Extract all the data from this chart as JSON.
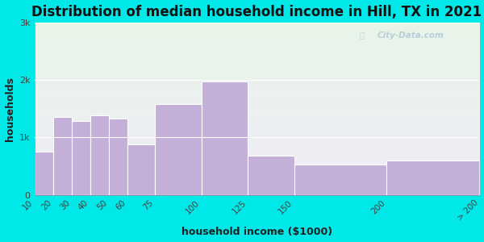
{
  "title": "Distribution of median household income in Hill, TX in 2021",
  "xlabel": "household income ($1000)",
  "ylabel": "households",
  "bin_edges": [
    10,
    20,
    30,
    40,
    50,
    60,
    75,
    100,
    125,
    150,
    200,
    250
  ],
  "values": [
    750,
    1350,
    1280,
    1380,
    1330,
    880,
    1580,
    1970,
    680,
    530,
    600
  ],
  "xtick_positions": [
    10,
    20,
    30,
    40,
    50,
    60,
    75,
    100,
    125,
    150,
    200,
    250
  ],
  "xtick_labels": [
    "10",
    "20",
    "30",
    "40",
    "50",
    "60",
    "75",
    "100",
    "125",
    "150",
    "200",
    "> 200"
  ],
  "bar_color": "#c4afd8",
  "bar_edge_color": "#ffffff",
  "yticks": [
    0,
    1000,
    2000,
    3000
  ],
  "ytick_labels": [
    "0",
    "1k",
    "2k",
    "3k"
  ],
  "ylim": [
    0,
    3000
  ],
  "xlim": [
    10,
    250
  ],
  "bg_outer": "#00e8e8",
  "bg_inner": "#e8f5e8",
  "title_fontsize": 12,
  "label_fontsize": 9,
  "watermark": "City-Data.com"
}
